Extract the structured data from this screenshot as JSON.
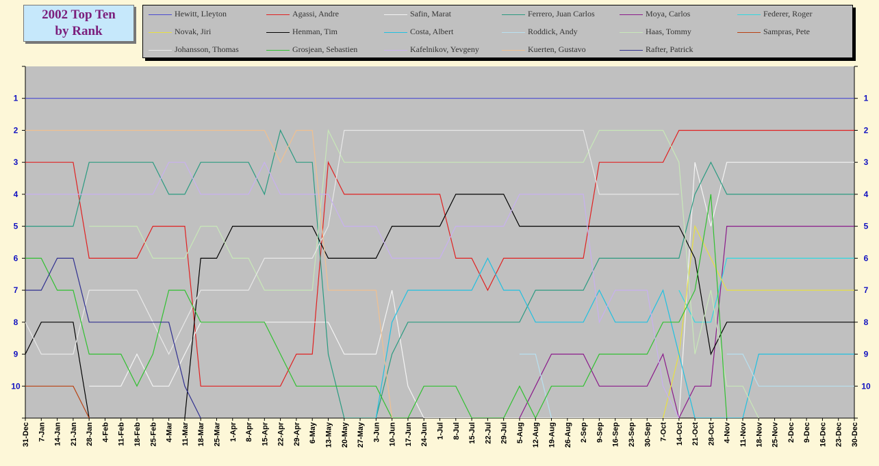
{
  "title": {
    "line1": "2002 Top Ten",
    "line2": "by Rank"
  },
  "chart_data": {
    "type": "line",
    "title": "2002 Top Ten by Rank",
    "xlabel": "",
    "ylabel": "",
    "y_ticks": [
      "1",
      "2",
      "3",
      "4",
      "5",
      "6",
      "7",
      "8",
      "9",
      "10"
    ],
    "ylim": [
      0,
      11
    ],
    "y_inverted": true,
    "grid": "horizontal",
    "legend_position": "top",
    "x": [
      "31-Dec",
      "7-Jan",
      "14-Jan",
      "21-Jan",
      "28-Jan",
      "4-Feb",
      "11-Feb",
      "18-Feb",
      "25-Feb",
      "4-Mar",
      "11-Mar",
      "18-Mar",
      "25-Mar",
      "1-Apr",
      "8-Apr",
      "15-Apr",
      "22-Apr",
      "29-Apr",
      "6-May",
      "13-May",
      "20-May",
      "27-May",
      "3-Jun",
      "10-Jun",
      "17-Jun",
      "24-Jun",
      "1-Jul",
      "8-Jul",
      "15-Jul",
      "22-Jul",
      "29-Jul",
      "5-Aug",
      "12-Aug",
      "19-Aug",
      "26-Aug",
      "2-Sep",
      "9-Sep",
      "16-Sep",
      "23-Sep",
      "30-Sep",
      "7-Oct",
      "14-Oct",
      "21-Oct",
      "28-Oct",
      "4-Nov",
      "11-Nov",
      "18-Nov",
      "25-Nov",
      "2-Dec",
      "9-Dec",
      "16-Dec",
      "23-Dec",
      "30-Dec"
    ],
    "series": [
      {
        "name": "Hewitt, Lleyton",
        "color": "#4a4ad0",
        "values": [
          1,
          1,
          1,
          1,
          1,
          1,
          1,
          1,
          1,
          1,
          1,
          1,
          1,
          1,
          1,
          1,
          1,
          1,
          1,
          1,
          1,
          1,
          1,
          1,
          1,
          1,
          1,
          1,
          1,
          1,
          1,
          1,
          1,
          1,
          1,
          1,
          1,
          1,
          1,
          1,
          1,
          1,
          1,
          1,
          1,
          1,
          1,
          1,
          1,
          1,
          1,
          1,
          1
        ]
      },
      {
        "name": "Agassi, Andre",
        "color": "#e02020",
        "values": [
          3,
          3,
          3,
          3,
          6,
          6,
          6,
          6,
          5,
          5,
          5,
          10,
          10,
          10,
          10,
          10,
          10,
          9,
          9,
          3,
          4,
          4,
          4,
          4,
          4,
          4,
          4,
          6,
          6,
          7,
          6,
          6,
          6,
          6,
          6,
          6,
          3,
          3,
          3,
          3,
          3,
          2,
          2,
          2,
          2,
          2,
          2,
          2,
          2,
          2,
          2,
          2,
          2
        ]
      },
      {
        "name": "Safin, Marat",
        "color": "#f4f4f4",
        "values": [
          null,
          null,
          null,
          null,
          10,
          10,
          10,
          9,
          10,
          10,
          9,
          8,
          8,
          8,
          8,
          8,
          8,
          8,
          8,
          8,
          9,
          9,
          9,
          7,
          10,
          11,
          11,
          11,
          11,
          11,
          11,
          11,
          11,
          11,
          11,
          11,
          11,
          11,
          11,
          11,
          11,
          11,
          3,
          5,
          3,
          3,
          3,
          3,
          3,
          3,
          3,
          3,
          3
        ]
      },
      {
        "name": "Ferrero, Juan Carlos",
        "color": "#2a9a80",
        "values": [
          5,
          5,
          5,
          5,
          3,
          3,
          3,
          3,
          3,
          4,
          4,
          3,
          3,
          3,
          3,
          4,
          2,
          3,
          3,
          9,
          11,
          11,
          11,
          9,
          8,
          8,
          8,
          8,
          8,
          8,
          8,
          8,
          7,
          7,
          7,
          7,
          6,
          6,
          6,
          6,
          6,
          6,
          4,
          3,
          4,
          4,
          4,
          4,
          4,
          4,
          4,
          4,
          4
        ]
      },
      {
        "name": "Moya, Carlos",
        "color": "#8a1a8a",
        "values": [
          null,
          null,
          null,
          null,
          null,
          null,
          null,
          null,
          null,
          null,
          null,
          null,
          null,
          null,
          null,
          null,
          null,
          null,
          null,
          null,
          null,
          null,
          null,
          null,
          null,
          null,
          null,
          null,
          null,
          null,
          null,
          11,
          10,
          9,
          9,
          9,
          10,
          10,
          10,
          10,
          9,
          11,
          10,
          10,
          5,
          5,
          5,
          5,
          5,
          5,
          5,
          5,
          5
        ]
      },
      {
        "name": "Federer, Roger",
        "color": "#30d8e0",
        "values": [
          null,
          null,
          null,
          null,
          null,
          null,
          null,
          null,
          null,
          null,
          null,
          null,
          null,
          null,
          null,
          null,
          null,
          null,
          null,
          null,
          null,
          null,
          null,
          null,
          null,
          null,
          null,
          null,
          null,
          null,
          null,
          null,
          null,
          null,
          null,
          null,
          null,
          null,
          null,
          null,
          null,
          7,
          8,
          8,
          6,
          6,
          6,
          6,
          6,
          6,
          6,
          6,
          6
        ]
      },
      {
        "name": "Novak, Jiri",
        "color": "#e8e040",
        "values": [
          null,
          null,
          null,
          null,
          null,
          null,
          null,
          null,
          null,
          null,
          null,
          null,
          null,
          null,
          null,
          null,
          null,
          null,
          null,
          null,
          null,
          null,
          null,
          null,
          null,
          null,
          null,
          null,
          null,
          null,
          null,
          null,
          null,
          null,
          null,
          null,
          null,
          null,
          null,
          null,
          11,
          9,
          5,
          6,
          7,
          7,
          7,
          7,
          7,
          7,
          7,
          7,
          7
        ]
      },
      {
        "name": "Henman, Tim",
        "color": "#000000",
        "values": [
          9,
          8,
          8,
          8,
          11,
          11,
          11,
          11,
          11,
          11,
          11,
          6,
          6,
          5,
          5,
          5,
          5,
          5,
          5,
          6,
          6,
          6,
          6,
          5,
          5,
          5,
          5,
          4,
          4,
          4,
          4,
          5,
          5,
          5,
          5,
          5,
          5,
          5,
          5,
          5,
          5,
          5,
          6,
          9,
          8,
          8,
          8,
          8,
          8,
          8,
          8,
          8,
          8
        ]
      },
      {
        "name": "Costa, Albert",
        "color": "#20c0e0",
        "values": [
          null,
          null,
          null,
          null,
          null,
          null,
          null,
          null,
          null,
          null,
          null,
          null,
          null,
          null,
          null,
          null,
          null,
          null,
          null,
          null,
          null,
          null,
          11,
          8,
          7,
          7,
          7,
          7,
          7,
          6,
          7,
          7,
          8,
          8,
          8,
          8,
          7,
          8,
          8,
          8,
          7,
          9,
          11,
          11,
          11,
          11,
          9,
          9,
          9,
          9,
          9,
          9,
          9
        ]
      },
      {
        "name": "Roddick, Andy",
        "color": "#b8e0f0",
        "values": [
          null,
          null,
          null,
          null,
          null,
          null,
          null,
          null,
          null,
          null,
          null,
          null,
          null,
          null,
          null,
          null,
          null,
          null,
          null,
          null,
          null,
          null,
          null,
          null,
          null,
          null,
          null,
          null,
          null,
          null,
          null,
          9,
          9,
          11,
          null,
          null,
          null,
          null,
          null,
          null,
          null,
          null,
          null,
          null,
          9,
          9,
          10,
          10,
          10,
          10,
          10,
          10,
          10
        ]
      },
      {
        "name": "Haas, Tommy",
        "color": "#c8e8b8",
        "values": [
          null,
          null,
          null,
          null,
          5,
          5,
          5,
          5,
          6,
          6,
          6,
          5,
          5,
          6,
          6,
          7,
          7,
          7,
          7,
          2,
          3,
          3,
          3,
          3,
          3,
          3,
          3,
          3,
          3,
          3,
          3,
          3,
          3,
          3,
          3,
          3,
          2,
          2,
          2,
          2,
          2,
          3,
          9,
          7,
          10,
          10,
          11,
          null,
          null,
          null,
          null,
          null,
          null
        ]
      },
      {
        "name": "Sampras, Pete",
        "color": "#b84010",
        "values": [
          10,
          10,
          10,
          10,
          11,
          null,
          null,
          null,
          null,
          null,
          null,
          null,
          null,
          null,
          null,
          null,
          null,
          null,
          null,
          null,
          null,
          null,
          null,
          null,
          null,
          null,
          null,
          null,
          null,
          null,
          null,
          null,
          null,
          null,
          null,
          null,
          null,
          null,
          null,
          null,
          null,
          null,
          null,
          null,
          null,
          null,
          null,
          null,
          null,
          null,
          null,
          null,
          null
        ]
      },
      {
        "name": "Johansson, Thomas",
        "color": "#e8e8e8",
        "values": [
          8,
          9,
          9,
          9,
          7,
          7,
          7,
          7,
          8,
          9,
          8,
          7,
          7,
          7,
          7,
          6,
          6,
          6,
          6,
          5,
          2,
          2,
          2,
          2,
          2,
          2,
          2,
          2,
          2,
          2,
          2,
          2,
          2,
          2,
          2,
          2,
          4,
          4,
          4,
          4,
          4,
          4,
          null,
          null,
          null,
          null,
          null,
          null,
          null,
          null,
          null,
          null,
          null
        ]
      },
      {
        "name": "Grosjean, Sebastien",
        "color": "#30c030",
        "values": [
          6,
          6,
          7,
          7,
          9,
          9,
          9,
          10,
          9,
          7,
          7,
          8,
          8,
          8,
          8,
          8,
          9,
          10,
          10,
          10,
          10,
          10,
          10,
          11,
          11,
          10,
          10,
          10,
          11,
          11,
          11,
          10,
          11,
          10,
          10,
          10,
          9,
          9,
          9,
          9,
          8,
          8,
          7,
          4,
          11,
          null,
          null,
          null,
          null,
          null,
          null,
          null,
          null
        ]
      },
      {
        "name": "Kafelnikov, Yevgeny",
        "color": "#c8b0f0",
        "values": [
          4,
          4,
          4,
          4,
          4,
          4,
          4,
          4,
          4,
          3,
          3,
          4,
          4,
          4,
          4,
          3,
          4,
          4,
          4,
          4,
          5,
          5,
          5,
          6,
          6,
          6,
          6,
          5,
          5,
          5,
          5,
          4,
          4,
          4,
          4,
          4,
          8,
          7,
          7,
          7,
          10,
          11,
          null,
          null,
          null,
          null,
          null,
          null,
          null,
          null,
          null,
          null,
          null
        ]
      },
      {
        "name": "Kuerten, Gustavo",
        "color": "#f0c090",
        "values": [
          2,
          2,
          2,
          2,
          2,
          2,
          2,
          2,
          2,
          2,
          2,
          2,
          2,
          2,
          2,
          2,
          3,
          2,
          2,
          7,
          7,
          7,
          7,
          11,
          null,
          null,
          null,
          null,
          null,
          null,
          null,
          null,
          null,
          null,
          null,
          null,
          null,
          null,
          null,
          null,
          null,
          null,
          null,
          null,
          null,
          null,
          null,
          null,
          null,
          null,
          null,
          null,
          null
        ]
      },
      {
        "name": "Rafter, Patrick",
        "color": "#303090",
        "values": [
          7,
          7,
          6,
          6,
          8,
          8,
          8,
          8,
          8,
          8,
          10,
          11,
          null,
          null,
          null,
          null,
          null,
          null,
          null,
          null,
          null,
          null,
          null,
          null,
          null,
          null,
          null,
          null,
          null,
          null,
          null,
          null,
          null,
          null,
          null,
          null,
          null,
          null,
          null,
          null,
          null,
          null,
          null,
          null,
          null,
          null,
          null,
          null,
          null,
          null,
          null,
          null,
          null
        ]
      }
    ]
  }
}
